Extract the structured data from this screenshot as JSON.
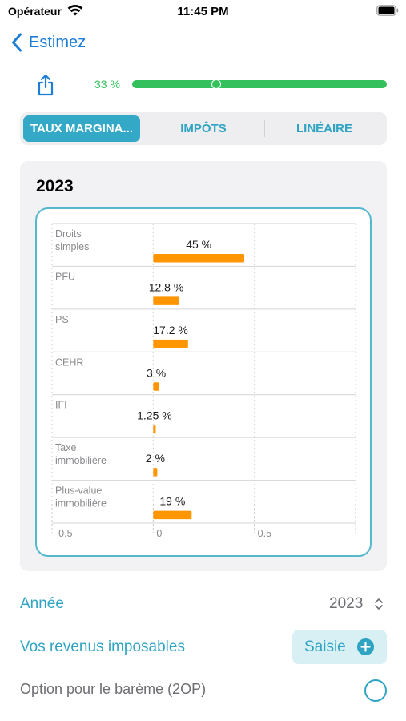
{
  "status_bar": {
    "carrier": "Opérateur",
    "time": "11:45 PM"
  },
  "nav": {
    "back_label": "Estimez"
  },
  "progress": {
    "label": "33 %",
    "value": 0.33
  },
  "segments": [
    {
      "label": "TAUX MARGINA...",
      "active": true
    },
    {
      "label": "IMPÔTS",
      "active": false
    },
    {
      "label": "LINÉAIRE",
      "active": false
    }
  ],
  "card": {
    "title": "2023"
  },
  "chart_data": {
    "type": "bar",
    "orientation": "horizontal",
    "categories": [
      "Droits simples",
      "PFU",
      "PS",
      "CEHR",
      "IFI",
      "Taxe immobilière",
      "Plus-value immobilière"
    ],
    "values": [
      0.45,
      0.128,
      0.172,
      0.03,
      0.0125,
      0.02,
      0.19
    ],
    "value_labels": [
      "45 %",
      "12.8 %",
      "17.2 %",
      "3 %",
      "1.25 %",
      "2 %",
      "19 %"
    ],
    "xlim": [
      -0.5,
      1.0
    ],
    "x_ticks": [
      -0.5,
      0,
      0.5,
      1.0
    ],
    "x_tick_labels": [
      "-0.5",
      "0",
      "0.5",
      ""
    ],
    "grid": true,
    "bar_color": "#ff9500"
  },
  "form": {
    "year_label": "Année",
    "year_value": "2023",
    "income_label": "Vos revenus imposables",
    "income_button": "Saisie",
    "option_label": "Option pour le barème (2OP)",
    "option_checked": false
  },
  "colors": {
    "accent": "#2fa4c2",
    "nav_blue": "#1e7ed6",
    "progress_green": "#34c05c",
    "bar_orange": "#ff9500"
  }
}
